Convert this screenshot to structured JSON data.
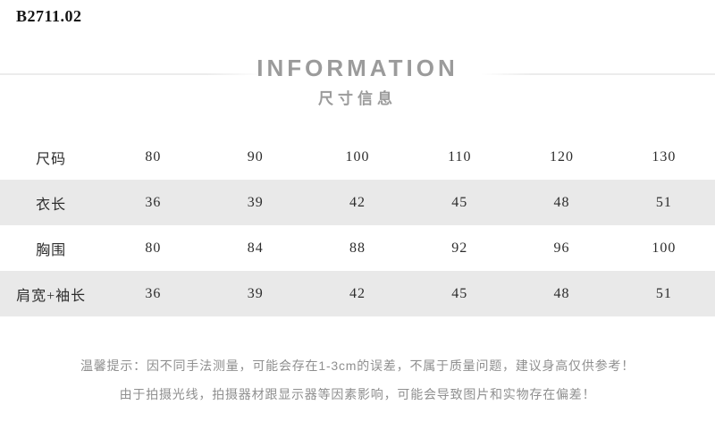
{
  "sku": "B2711.02",
  "header": {
    "title": "INFORMATION",
    "subtitle": "尺寸信息"
  },
  "size_table": {
    "rows": [
      {
        "cells": [
          "尺码",
          "80",
          "90",
          "100",
          "110",
          "120",
          "130"
        ]
      },
      {
        "cells": [
          "衣长",
          "36",
          "39",
          "42",
          "45",
          "48",
          "51"
        ]
      },
      {
        "cells": [
          "胸围",
          "80",
          "84",
          "88",
          "92",
          "96",
          "100"
        ]
      },
      {
        "cells": [
          "肩宽+袖长",
          "36",
          "39",
          "42",
          "45",
          "48",
          "51"
        ]
      }
    ]
  },
  "tips": {
    "line1": "温馨提示：因不同手法测量，可能会存在1-3cm的误差，不属于质量问题，建议身高仅供参考！",
    "line2": "由于拍摄光线，拍摄器材跟显示器等因素影响，可能会导致图片和实物存在偏差！"
  },
  "colors": {
    "row_stripe": "#e9e9e9",
    "heading_gray": "#9b9b9b",
    "tip_gray": "#8f8f8f",
    "table_text": "#2d2d2d",
    "rule_gray": "#ececec"
  }
}
